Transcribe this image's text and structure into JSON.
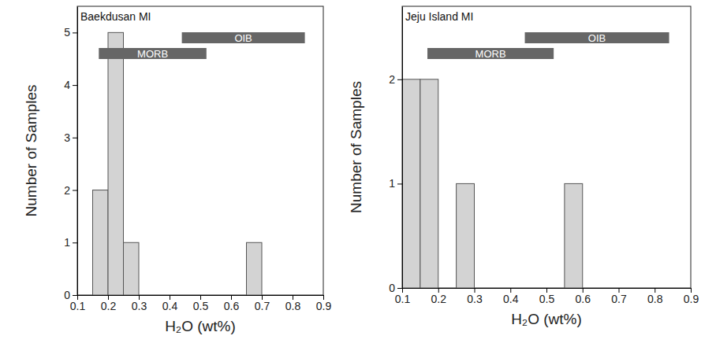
{
  "chart_data": [
    {
      "type": "histogram",
      "title": "Baekdusan MI",
      "bins": [
        0.15,
        0.2,
        0.25,
        0.3,
        0.35,
        0.4,
        0.45,
        0.5,
        0.55,
        0.6,
        0.65,
        0.7
      ],
      "counts": [
        2,
        5,
        1,
        0,
        0,
        0,
        0,
        0,
        0,
        0,
        1
      ],
      "color": "#d3d3d3",
      "x_label": "H₂O (wt%)",
      "y_label": "Number of Samples",
      "xlim": [
        0.1,
        0.9
      ],
      "xticks": [
        0.1,
        0.2,
        0.3,
        0.4,
        0.5,
        0.6,
        0.7,
        0.8,
        0.9
      ],
      "ylim": [
        0,
        5.5
      ],
      "yticks": [
        0,
        1,
        2,
        3,
        4,
        5
      ],
      "ranges": [
        {
          "name": "MORB",
          "min": 0.17,
          "max": 0.52
        },
        {
          "name": "OIB",
          "min": 0.44,
          "max": 0.84
        }
      ]
    },
    {
      "type": "histogram",
      "title": "Jeju Island MI",
      "bins": [
        0.1,
        0.15,
        0.2,
        0.25,
        0.3,
        0.35,
        0.4,
        0.45,
        0.5,
        0.55,
        0.6
      ],
      "counts": [
        2,
        2,
        0,
        1,
        0,
        0,
        0,
        0,
        0,
        1
      ],
      "color": "#d3d3d3",
      "x_label": "H₂O (wt%)",
      "y_label": "Number of Samples",
      "xlim": [
        0.1,
        0.9
      ],
      "xticks": [
        0.1,
        0.2,
        0.3,
        0.4,
        0.5,
        0.6,
        0.7,
        0.8,
        0.9
      ],
      "ylim": [
        0,
        2.7
      ],
      "yticks": [
        0,
        1,
        2
      ],
      "ranges": [
        {
          "name": "MORB",
          "min": 0.17,
          "max": 0.52
        },
        {
          "name": "OIB",
          "min": 0.44,
          "max": 0.84
        }
      ]
    }
  ]
}
